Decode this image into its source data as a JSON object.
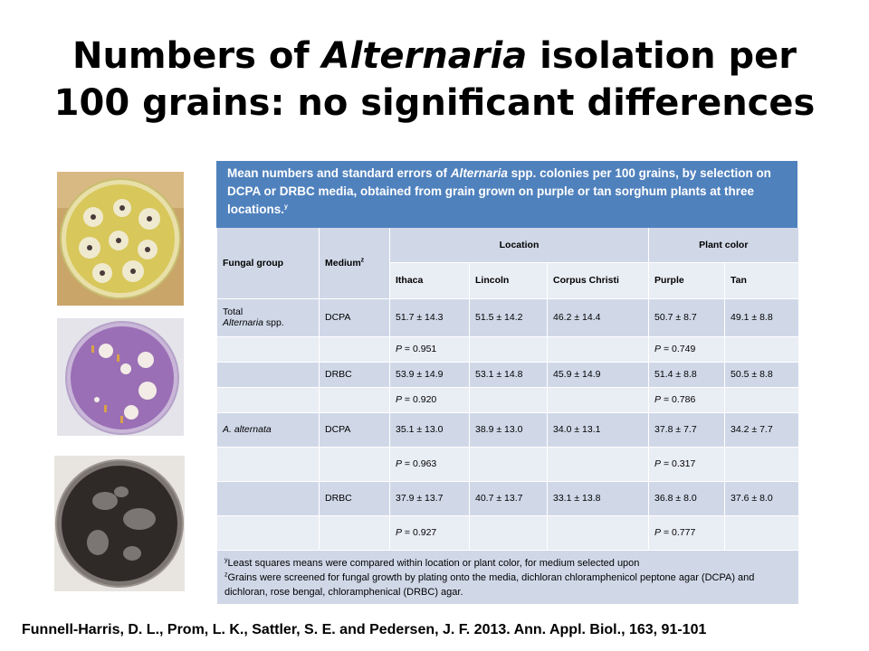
{
  "title": {
    "line1_pre": "Numbers of ",
    "line1_italic": "Alternaria",
    "line1_post": " isolation per",
    "line2": "100 grains: no significant differences"
  },
  "photos": [
    {
      "name": "petri-dish-yellow-medium",
      "medium_color": "#d8c75a"
    },
    {
      "name": "petri-dish-purple-medium",
      "medium_color": "#9a6fb5"
    },
    {
      "name": "petri-dish-dark-colonies",
      "medium_color": "#2f2a28"
    }
  ],
  "table": {
    "caption_pre": "Mean numbers and standard errors of ",
    "caption_italic": "Alternaria",
    "caption_post": " spp. colonies per 100 grains, by selection on DCPA or DRBC media, obtained from grain grown on purple or tan sorghum plants at three locations.",
    "caption_sup": "y",
    "headers": {
      "fungal_group": "Fungal group",
      "medium": "Medium",
      "medium_sup": "z",
      "location": "Location",
      "plant_color": "Plant color",
      "ithaca": "Ithaca",
      "lincoln": "Lincoln",
      "corpus_christi": "Corpus Christi",
      "purple": "Purple",
      "tan": "Tan"
    },
    "rows": {
      "total_label": "Total",
      "total_label_italic": "Alternaria",
      "total_label_post": " spp.",
      "total_dcpa": {
        "medium": "DCPA",
        "ithaca": "51.7 ± 14.3",
        "lincoln": "51.5 ± 14.2",
        "corpus": "46.2 ± 14.4",
        "purple": "50.7 ± 8.7",
        "tan": "49.1 ± 8.8"
      },
      "total_dcpa_p": {
        "loc_label": "P",
        "loc_value": " = 0.951",
        "color_label": "P",
        "color_value": " = 0.749"
      },
      "total_drbc": {
        "medium": "DRBC",
        "ithaca": "53.9 ± 14.9",
        "lincoln": "53.1 ± 14.8",
        "corpus": "45.9 ± 14.9",
        "purple": "51.4 ± 8.8",
        "tan": "50.5 ± 8.8"
      },
      "total_drbc_p": {
        "loc_label": "P",
        "loc_value": " = 0.920",
        "color_label": "P",
        "color_value": " = 0.786"
      },
      "alt_label": "A. alternata",
      "alt_dcpa": {
        "medium": "DCPA",
        "ithaca": "35.1 ± 13.0",
        "lincoln": "38.9 ± 13.0",
        "corpus": "34.0 ± 13.1",
        "purple": "37.8 ± 7.7",
        "tan": "34.2 ± 7.7"
      },
      "alt_dcpa_p": {
        "loc_label": "P",
        "loc_value": " = 0.963",
        "color_label": "P",
        "color_value": " = 0.317"
      },
      "alt_drbc": {
        "medium": "DRBC",
        "ithaca": "37.9 ± 13.7",
        "lincoln": "40.7 ± 13.7",
        "corpus": "33.1 ± 13.8",
        "purple": "36.8 ± 8.0",
        "tan": "37.6 ± 8.0"
      },
      "alt_drbc_p": {
        "loc_label": "P",
        "loc_value": " = 0.927",
        "color_label": "P",
        "color_value": "  = 0.777"
      }
    },
    "footnotes": {
      "y_sup": "y",
      "y_text": "Least squares means were compared within location or plant color, for medium selected upon",
      "z_sup": "z",
      "z_text": "Grains were screened for fungal growth by plating onto the media, dichloran chloramphenicol peptone agar (DCPA) and dichloran, rose bengal, chloramphenical (DRBC) agar."
    }
  },
  "reference": "Funnell-Harris, D. L., Prom, L. K., Sattler, S. E. and Pedersen, J. F. 2013. Ann. Appl. Biol., 163, 91-101"
}
